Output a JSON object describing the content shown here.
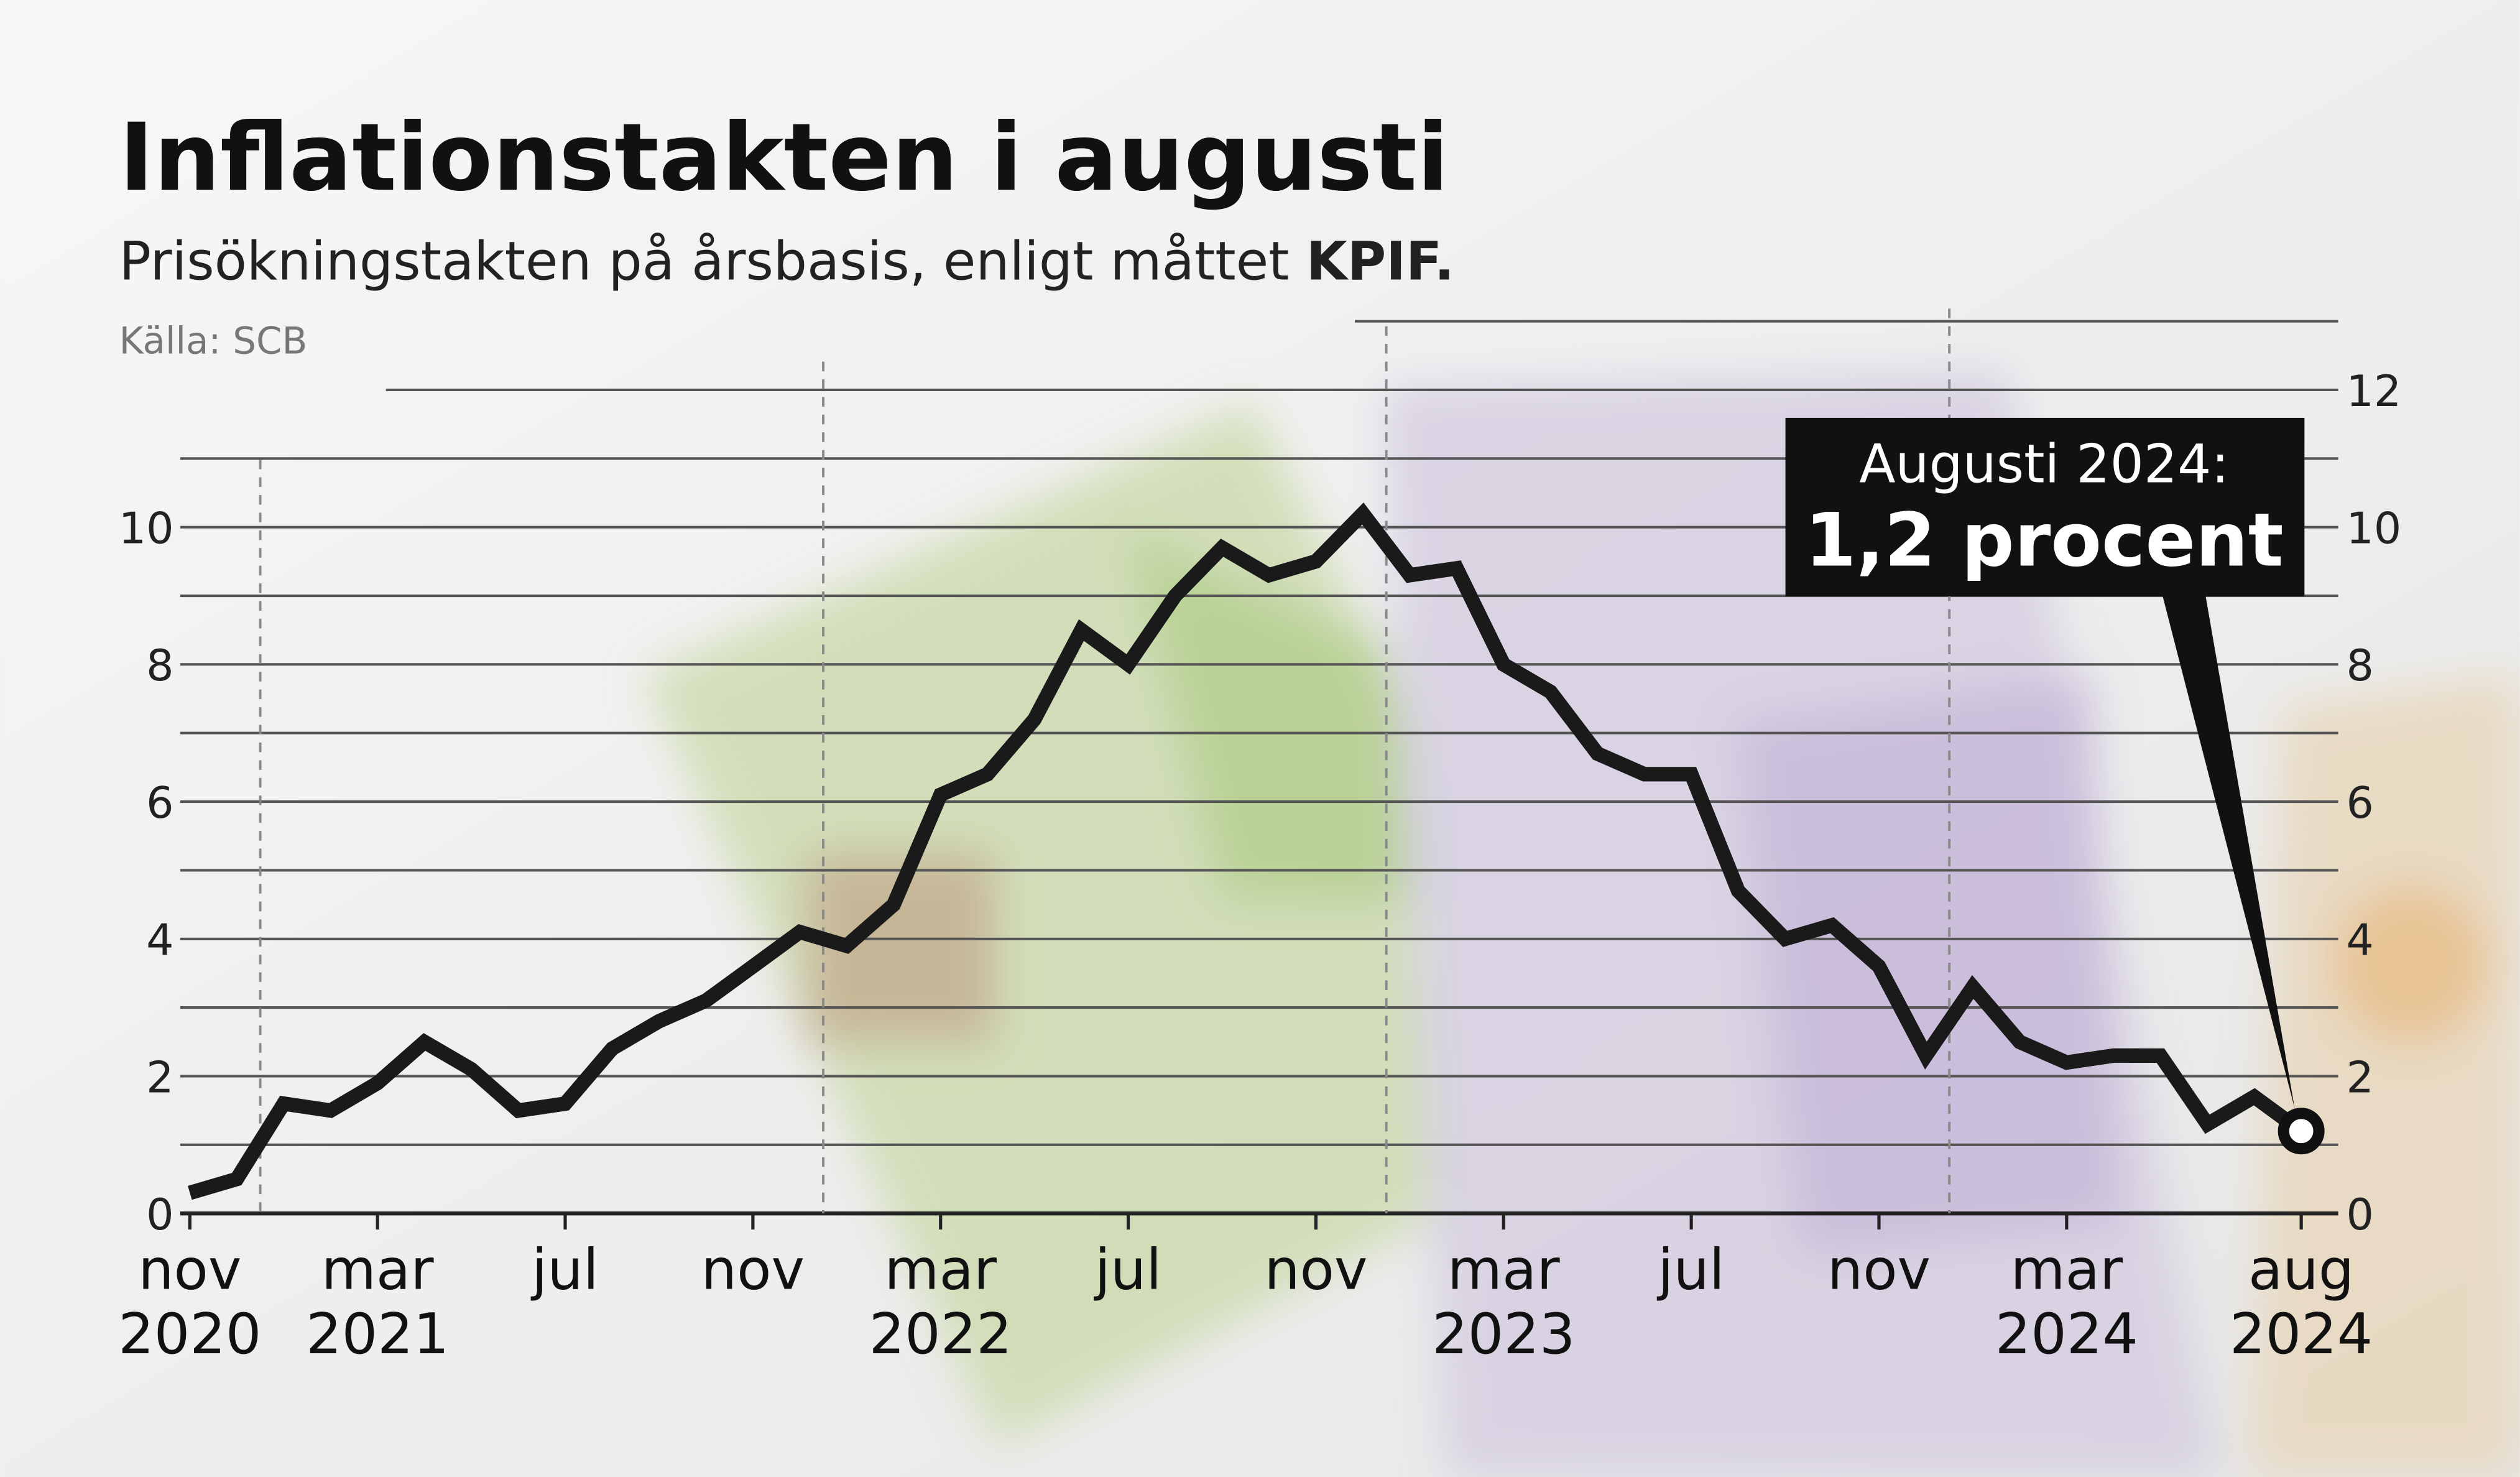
{
  "title": "Inflationstakten i augusti",
  "subtitle_plain": "Prisökningstakten på årsbasis, enligt måttet ",
  "subtitle_bold": "KPIF.",
  "source": "Källa: SCB",
  "callout": {
    "line1": "Augusti 2024:",
    "line2": "1,2 procent"
  },
  "colors": {
    "line": "#1a1a1a",
    "grid": "#555555",
    "callout_bg": "#111111",
    "callout_text": "#ffffff"
  },
  "chart_data": {
    "type": "line",
    "title": "Inflationstakten i augusti",
    "subtitle": "Prisökningstakten på årsbasis, enligt måttet KPIF.",
    "x": [
      "2020-11",
      "2020-12",
      "2021-01",
      "2021-02",
      "2021-03",
      "2021-04",
      "2021-05",
      "2021-06",
      "2021-07",
      "2021-08",
      "2021-09",
      "2021-10",
      "2021-11",
      "2021-12",
      "2022-01",
      "2022-02",
      "2022-03",
      "2022-04",
      "2022-05",
      "2022-06",
      "2022-07",
      "2022-08",
      "2022-09",
      "2022-10",
      "2022-11",
      "2022-12",
      "2023-01",
      "2023-02",
      "2023-03",
      "2023-04",
      "2023-05",
      "2023-06",
      "2023-07",
      "2023-08",
      "2023-09",
      "2023-10",
      "2023-11",
      "2023-12",
      "2024-01",
      "2024-02",
      "2024-03",
      "2024-04",
      "2024-05",
      "2024-06",
      "2024-07",
      "2024-08"
    ],
    "values": [
      0.3,
      0.5,
      1.6,
      1.5,
      1.9,
      2.5,
      2.1,
      1.5,
      1.6,
      2.4,
      2.8,
      3.1,
      3.6,
      4.1,
      3.9,
      4.5,
      6.1,
      6.4,
      7.2,
      8.5,
      8.0,
      9.0,
      9.7,
      9.3,
      9.5,
      10.2,
      9.3,
      9.4,
      8.0,
      7.6,
      6.7,
      6.4,
      6.4,
      4.7,
      4.0,
      4.2,
      3.6,
      2.3,
      3.3,
      2.5,
      2.2,
      2.3,
      2.3,
      1.3,
      1.7,
      1.2
    ],
    "ylim": [
      0,
      13
    ],
    "y_ticks_left": [
      "0",
      "2",
      "4",
      "6",
      "8",
      "10"
    ],
    "y_ticks_right": [
      "0",
      "2",
      "4",
      "6",
      "8",
      "10",
      "12"
    ],
    "x_tick_labels": [
      {
        "month": "nov",
        "year": "2020",
        "at": "2020-11"
      },
      {
        "month": "mar",
        "year": "2021",
        "at": "2021-03"
      },
      {
        "month": "jul",
        "year": "",
        "at": "2021-07"
      },
      {
        "month": "nov",
        "year": "",
        "at": "2021-11"
      },
      {
        "month": "mar",
        "year": "2022",
        "at": "2022-03"
      },
      {
        "month": "jul",
        "year": "",
        "at": "2022-07"
      },
      {
        "month": "nov",
        "year": "",
        "at": "2022-11"
      },
      {
        "month": "mar",
        "year": "2023",
        "at": "2023-03"
      },
      {
        "month": "jul",
        "year": "",
        "at": "2023-07"
      },
      {
        "month": "nov",
        "year": "",
        "at": "2023-11"
      },
      {
        "month": "mar",
        "year": "2024",
        "at": "2024-03"
      },
      {
        "month": "aug",
        "year": "2024",
        "at": "2024-08"
      }
    ],
    "year_dividers": [
      "2021",
      "2022",
      "2023",
      "2024"
    ],
    "grid": true,
    "highlight": {
      "at": "2024-08",
      "value": 1.2
    }
  }
}
